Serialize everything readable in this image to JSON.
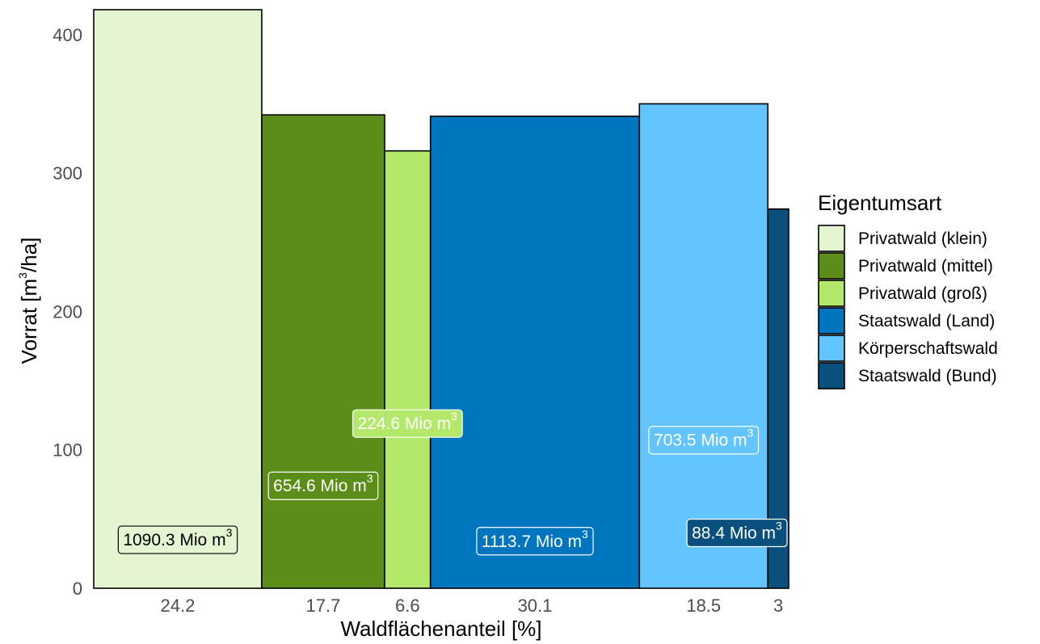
{
  "chart_data": {
    "type": "bar",
    "variable_width": true,
    "xlabel": "Waldflächenanteil [%]",
    "ylabel": "Vorrat [m",
    "ylabel_sup": "3",
    "ylabel_suffix": "/ha]",
    "ylim": [
      0,
      418
    ],
    "yticks": [
      0,
      100,
      200,
      300,
      400
    ],
    "legend": {
      "title": "Eigentumsart",
      "placement": "right"
    },
    "label_unit": "Mio m",
    "label_unit_sup": "3",
    "bars": [
      {
        "name": "Privatwald (klein)",
        "share": 24.2,
        "share_label": "24.2",
        "vorrat": 418,
        "volume": "1090.3",
        "label_y": 35,
        "color": "#e4f6d1",
        "label_text_color": "#000000",
        "label_border": "#000000"
      },
      {
        "name": "Privatwald (mittel)",
        "share": 17.7,
        "share_label": "17.7",
        "vorrat": 342,
        "volume": "654.6",
        "label_y": 74,
        "color": "#5b8d18",
        "label_text_color": "#ffffff",
        "label_border": "#ffffff"
      },
      {
        "name": "Privatwald (groß)",
        "share": 6.6,
        "share_label": "6.6",
        "vorrat": 316,
        "volume": "224.6",
        "label_y": 119,
        "color": "#b3e86b",
        "label_text_color": "#ffffff",
        "label_border": "#ffffff"
      },
      {
        "name": "Staatswald (Land)",
        "share": 30.1,
        "share_label": "30.1",
        "vorrat": 341,
        "volume": "1113.7",
        "label_y": 34,
        "color": "#0075bf",
        "label_text_color": "#ffffff",
        "label_border": "#ffffff"
      },
      {
        "name": "Körperschaftswald",
        "share": 18.5,
        "share_label": "18.5",
        "vorrat": 350,
        "volume": "703.5",
        "label_y": 107,
        "color": "#63c4ff",
        "label_text_color": "#ffffff",
        "label_border": "#ffffff"
      },
      {
        "name": "Staatswald (Bund)",
        "share": 3,
        "share_label": "3",
        "vorrat": 274,
        "volume": "88.4",
        "label_y": 40,
        "color": "#0a507f",
        "label_text_color": "#ffffff",
        "label_border": "#ffffff"
      }
    ]
  }
}
